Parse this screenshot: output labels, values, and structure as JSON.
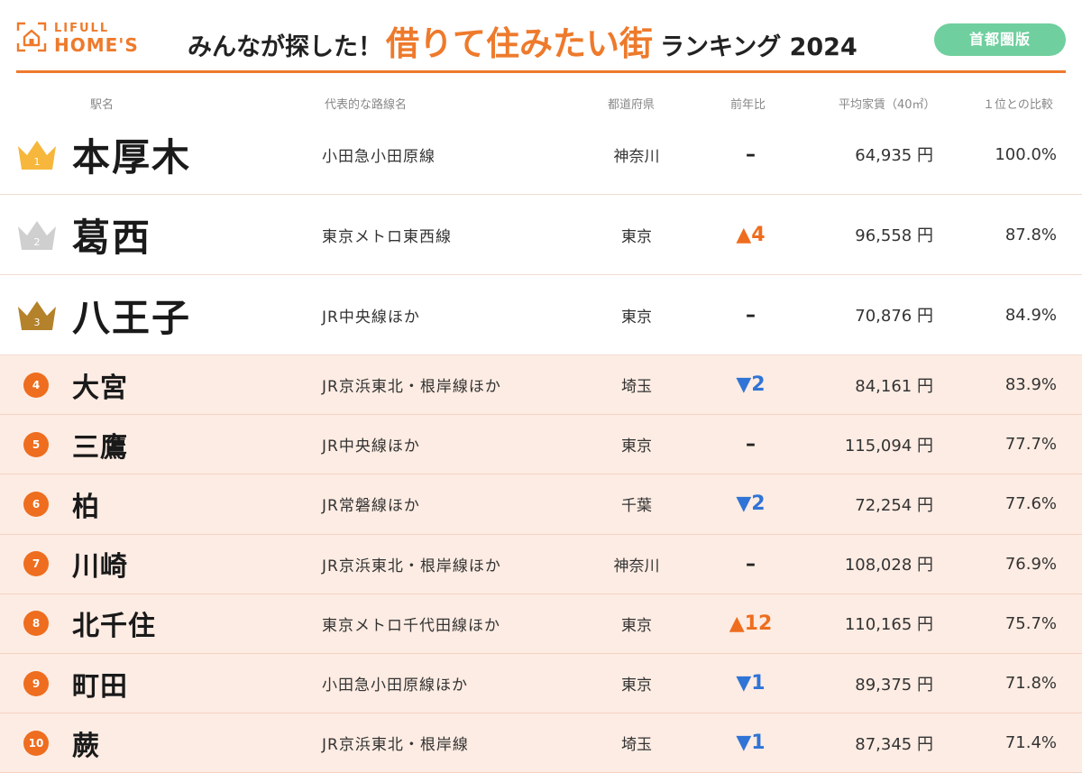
{
  "header": {
    "logo_line1": "LIFULL",
    "logo_line2": "HOME'S",
    "title_pre": "みんなが探した！",
    "title_main": "借りて住みたい街",
    "title_post": "ランキング 2024",
    "region_badge": "首都圏版"
  },
  "columns": {
    "station": "駅名",
    "line": "代表的な路線名",
    "prefecture": "都道府県",
    "change": "前年比",
    "rent": "平均家賃（40㎡）",
    "ratio": "１位との比較"
  },
  "colors": {
    "brand_orange": "#ee7a2c",
    "badge_green": "#6fcf9e",
    "crown_gold": "#f6b73c",
    "crown_silver": "#cfcfcf",
    "crown_bronze": "#b4822a",
    "up": "#ee6d1e",
    "down": "#2f74d6",
    "row_tint": "#fdece3"
  },
  "rows": [
    {
      "rank": "1",
      "marker": "crown-gold-icon",
      "station": "本厚木",
      "line": "小田急小田原線",
      "prefecture": "神奈川",
      "change": "–",
      "change_dir": "same",
      "rent": "64,935 円",
      "ratio": "100.0%"
    },
    {
      "rank": "2",
      "marker": "crown-silver-icon",
      "station": "葛西",
      "line": "東京メトロ東西線",
      "prefecture": "東京",
      "change": "▲4",
      "change_dir": "up",
      "rent": "96,558 円",
      "ratio": "87.8%"
    },
    {
      "rank": "3",
      "marker": "crown-bronze-icon",
      "station": "八王子",
      "line": "JR中央線ほか",
      "prefecture": "東京",
      "change": "–",
      "change_dir": "same",
      "rent": "70,876 円",
      "ratio": "84.9%"
    },
    {
      "rank": "4",
      "marker": "rank-circle",
      "station": "大宮",
      "line": "JR京浜東北・根岸線ほか",
      "prefecture": "埼玉",
      "change": "▼2",
      "change_dir": "down",
      "rent": "84,161 円",
      "ratio": "83.9%"
    },
    {
      "rank": "5",
      "marker": "rank-circle",
      "station": "三鷹",
      "line": "JR中央線ほか",
      "prefecture": "東京",
      "change": "–",
      "change_dir": "same",
      "rent": "115,094 円",
      "ratio": "77.7%"
    },
    {
      "rank": "6",
      "marker": "rank-circle",
      "station": "柏",
      "line": "JR常磐線ほか",
      "prefecture": "千葉",
      "change": "▼2",
      "change_dir": "down",
      "rent": "72,254 円",
      "ratio": "77.6%"
    },
    {
      "rank": "7",
      "marker": "rank-circle",
      "station": "川崎",
      "line": "JR京浜東北・根岸線ほか",
      "prefecture": "神奈川",
      "change": "–",
      "change_dir": "same",
      "rent": "108,028 円",
      "ratio": "76.9%"
    },
    {
      "rank": "8",
      "marker": "rank-circle",
      "station": "北千住",
      "line": "東京メトロ千代田線ほか",
      "prefecture": "東京",
      "change": "▲12",
      "change_dir": "up",
      "rent": "110,165 円",
      "ratio": "75.7%"
    },
    {
      "rank": "9",
      "marker": "rank-circle",
      "station": "町田",
      "line": "小田急小田原線ほか",
      "prefecture": "東京",
      "change": "▼1",
      "change_dir": "down",
      "rent": "89,375 円",
      "ratio": "71.8%"
    },
    {
      "rank": "10",
      "marker": "rank-circle",
      "station": "蕨",
      "line": "JR京浜東北・根岸線",
      "prefecture": "埼玉",
      "change": "▼1",
      "change_dir": "down",
      "rent": "87,345 円",
      "ratio": "71.4%"
    }
  ]
}
